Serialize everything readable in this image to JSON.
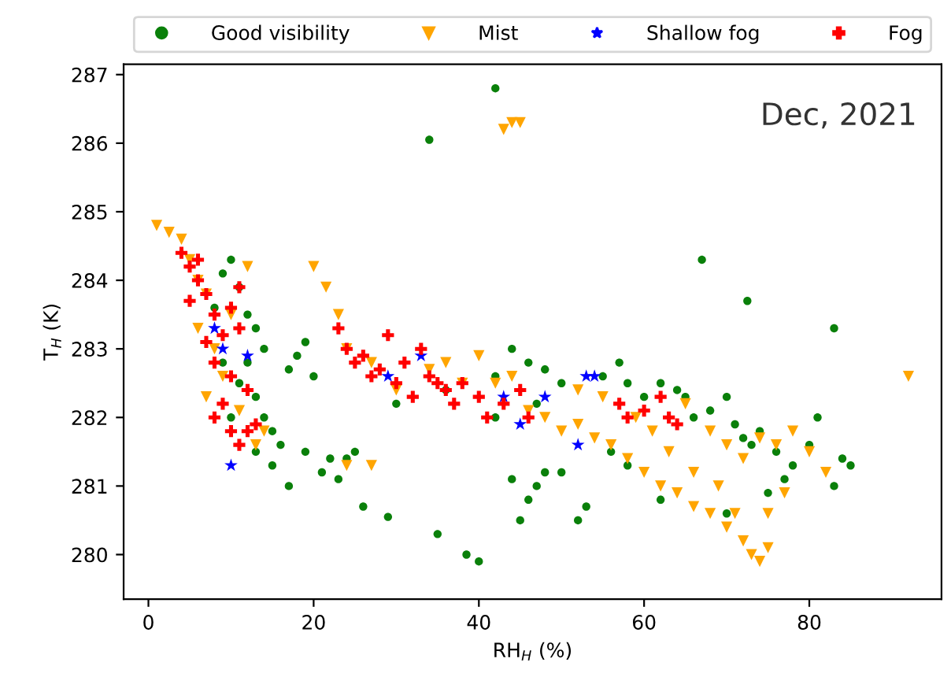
{
  "chart_data": {
    "type": "scatter",
    "xlabel": "RH$_{H}$ (%)",
    "ylabel": "T$_{H}$ (K)",
    "annotations": [
      {
        "text": "Dec, 2021"
      }
    ],
    "xlim": [
      -3,
      96
    ],
    "xticks": [
      0,
      20,
      40,
      60,
      80
    ],
    "ylim": [
      279.35,
      287.15
    ],
    "yticks": [
      280,
      281,
      282,
      283,
      284,
      285,
      286,
      287
    ],
    "grid": false,
    "legend": "top",
    "series": [
      {
        "name": "Good visibility",
        "color": "#0a800a",
        "marker": "circle",
        "x": [
          9,
          10,
          11,
          12,
          13,
          14,
          12,
          11,
          13,
          14,
          15,
          16,
          15,
          13,
          10,
          9,
          8,
          17,
          18,
          19,
          20,
          22,
          24,
          25,
          21,
          19,
          30,
          36,
          44,
          46,
          48,
          42,
          47,
          50,
          55,
          57,
          58,
          60,
          62,
          64,
          65,
          66,
          68,
          70,
          71,
          72,
          73,
          74,
          76,
          78,
          80,
          81,
          84,
          85,
          83,
          77,
          75,
          70,
          62,
          58,
          56,
          50,
          48,
          47,
          46,
          44,
          52,
          53,
          45,
          42,
          67,
          72.5,
          83,
          42,
          34,
          40,
          38.5,
          35,
          29,
          26,
          17,
          23
        ],
        "values": [
          284.1,
          284.3,
          283.9,
          283.5,
          283.3,
          283.0,
          282.8,
          282.5,
          282.3,
          282.0,
          281.8,
          281.6,
          281.3,
          281.5,
          282.0,
          282.8,
          283.6,
          282.7,
          282.9,
          283.1,
          282.6,
          281.4,
          281.4,
          281.5,
          281.2,
          281.5,
          282.2,
          282.4,
          283.0,
          282.8,
          282.7,
          282.0,
          282.2,
          282.5,
          282.6,
          282.8,
          282.5,
          282.3,
          282.5,
          282.4,
          282.3,
          282.0,
          282.1,
          282.3,
          281.9,
          281.7,
          281.6,
          281.8,
          281.5,
          281.3,
          281.6,
          282.0,
          281.4,
          281.3,
          281.0,
          281.1,
          280.9,
          280.6,
          280.8,
          281.3,
          281.5,
          281.2,
          281.2,
          281.0,
          280.8,
          281.1,
          280.5,
          280.7,
          280.5,
          282.6,
          284.3,
          283.7,
          283.3,
          286.8,
          286.05,
          279.9,
          280.0,
          280.3,
          280.55,
          280.7,
          281.0,
          281.1
        ]
      },
      {
        "name": "Mist",
        "color": "#ffa500",
        "marker": "triangle",
        "x": [
          1,
          2.5,
          4,
          5,
          6,
          7,
          6,
          8,
          9,
          7,
          11,
          13,
          14,
          12,
          10,
          20,
          21.5,
          23,
          24,
          27,
          30,
          34,
          38,
          40,
          42,
          44,
          46,
          48,
          50,
          52,
          54,
          56,
          58,
          60,
          62,
          64,
          66,
          68,
          70,
          72,
          73,
          74,
          75,
          71,
          69,
          66,
          63,
          61,
          59,
          65,
          68,
          70,
          72,
          74,
          76,
          78,
          80,
          82,
          77,
          75,
          44,
          43,
          45,
          92,
          36,
          52,
          55,
          24,
          27
        ],
        "values": [
          284.8,
          284.7,
          284.6,
          284.3,
          284.0,
          283.8,
          283.3,
          283.0,
          282.6,
          282.3,
          282.1,
          281.6,
          281.8,
          284.2,
          283.5,
          284.2,
          283.9,
          283.5,
          283.0,
          282.8,
          282.4,
          282.7,
          282.5,
          282.9,
          282.5,
          282.6,
          282.1,
          282.0,
          281.8,
          281.9,
          281.7,
          281.6,
          281.4,
          281.2,
          281.0,
          280.9,
          280.7,
          280.6,
          280.4,
          280.2,
          280.0,
          279.9,
          280.1,
          280.6,
          281.0,
          281.2,
          281.5,
          281.8,
          282.0,
          282.2,
          281.8,
          281.6,
          281.4,
          281.7,
          281.6,
          281.8,
          281.5,
          281.2,
          280.9,
          280.6,
          286.3,
          286.2,
          286.3,
          282.6,
          282.8,
          282.4,
          282.3,
          281.3,
          281.3
        ]
      },
      {
        "name": "Shallow fog",
        "color": "#0000ff",
        "marker": "star",
        "x": [
          8,
          9,
          12,
          29,
          33,
          43,
          45,
          53,
          54,
          52,
          48,
          10
        ],
        "values": [
          283.3,
          283.0,
          282.9,
          282.6,
          282.9,
          282.3,
          281.9,
          282.6,
          282.6,
          281.6,
          282.3,
          281.3
        ]
      },
      {
        "name": "Fog",
        "color": "#ff0000",
        "marker": "cross",
        "x": [
          4,
          5,
          6,
          7,
          5,
          8,
          9,
          7,
          8,
          10,
          11,
          10,
          9,
          8,
          10,
          11,
          12,
          13,
          12,
          11,
          6,
          23,
          24,
          25,
          26,
          27,
          28,
          30,
          31,
          32,
          34,
          35,
          36,
          37,
          38,
          40,
          41,
          43,
          45,
          57,
          58,
          60,
          62,
          63,
          64,
          46,
          33,
          29
        ],
        "values": [
          284.4,
          284.2,
          284.0,
          283.8,
          283.7,
          283.5,
          283.2,
          283.1,
          282.8,
          283.6,
          283.3,
          282.6,
          282.2,
          282.0,
          281.8,
          281.6,
          281.8,
          281.9,
          282.4,
          283.9,
          284.3,
          283.3,
          283.0,
          282.8,
          282.9,
          282.6,
          282.7,
          282.5,
          282.8,
          282.3,
          282.6,
          282.5,
          282.4,
          282.2,
          282.5,
          282.3,
          282.0,
          282.2,
          282.4,
          282.2,
          282.0,
          282.1,
          282.3,
          282.0,
          281.9,
          282.0,
          283.0,
          283.2
        ]
      }
    ]
  }
}
